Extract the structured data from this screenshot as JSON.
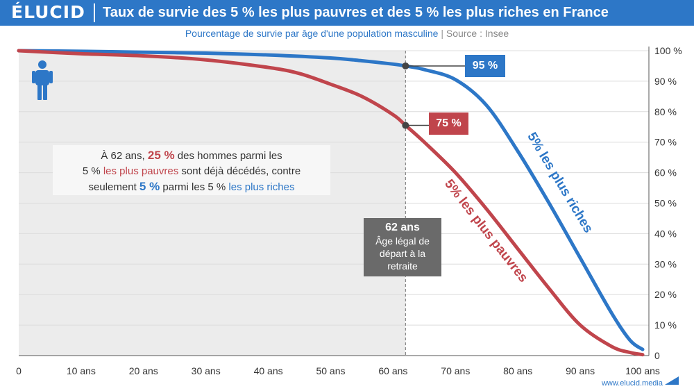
{
  "header": {
    "logo": "ÉLUCID",
    "title": "Taux de survie des 5 % les plus pauvres et des 5 % les plus riches en France",
    "subtitle": "Pourcentage de survie par âge d'une population masculine",
    "separator": "|",
    "source": "Source : Insee"
  },
  "colors": {
    "rich": "#2d77c7",
    "poor": "#c0454c",
    "grey_area": "#ececec",
    "retirement": "#6a6a6a"
  },
  "icons": {
    "person": "person-icon",
    "footer_mark": "triangle-icon"
  },
  "note": {
    "p1": "À 62 ans, ",
    "v1": "25 %",
    "p2": " des hommes parmi les",
    "p3": "5 % ",
    "h1": "les plus pauvres",
    "p4": " sont déjà décédés, contre",
    "p5": "seulement ",
    "v2": "5 %",
    "p6": " parmi les 5 % ",
    "h2": "les plus riches"
  },
  "retirement": {
    "age_label": "62 ans",
    "line1": "Âge légal de",
    "line2": "départ à la",
    "line3": "retraite"
  },
  "badges": {
    "rich": "95 %",
    "poor": "75 %"
  },
  "footer": {
    "url": "www.elucid.media"
  },
  "chart_data": {
    "type": "line",
    "x_ticks": [
      0,
      10,
      20,
      30,
      40,
      50,
      60,
      70,
      80,
      90,
      100
    ],
    "x_tick_labels": [
      "0",
      "10 ans",
      "20 ans",
      "30 ans",
      "40 ans",
      "50 ans",
      "60 ans",
      "70 ans",
      "80 ans",
      "90 ans",
      "100 ans"
    ],
    "y_ticks": [
      0,
      10,
      20,
      30,
      40,
      50,
      60,
      70,
      80,
      90,
      100
    ],
    "y_tick_labels": [
      "0",
      "10 %",
      "20 %",
      "30 %",
      "40 %",
      "50 %",
      "60 %",
      "70 %",
      "80 %",
      "90 %",
      "100 %"
    ],
    "xlim": [
      0,
      101
    ],
    "ylim": [
      0,
      100
    ],
    "y_axis_side": "right",
    "grid": "horizontal",
    "marker_x": 62,
    "series": [
      {
        "name": "5% les plus riches",
        "x": [
          0,
          10,
          20,
          30,
          40,
          50,
          55,
          60,
          62,
          65,
          70,
          75,
          80,
          85,
          90,
          95,
          98,
          100
        ],
        "values": [
          100,
          99.8,
          99.5,
          99.2,
          98.6,
          97.6,
          96.7,
          95.6,
          95,
          93.8,
          90.5,
          82,
          67,
          50,
          32,
          14,
          5,
          2
        ]
      },
      {
        "name": "5% les plus pauvres",
        "x": [
          0,
          10,
          20,
          30,
          40,
          45,
          50,
          55,
          60,
          62,
          65,
          70,
          75,
          80,
          85,
          90,
          95,
          98,
          100
        ],
        "values": [
          100,
          99,
          98.3,
          97,
          94.5,
          92.5,
          89,
          85,
          79,
          75.5,
          70,
          60,
          48,
          35,
          22,
          10,
          3,
          1,
          0.3
        ]
      }
    ]
  }
}
